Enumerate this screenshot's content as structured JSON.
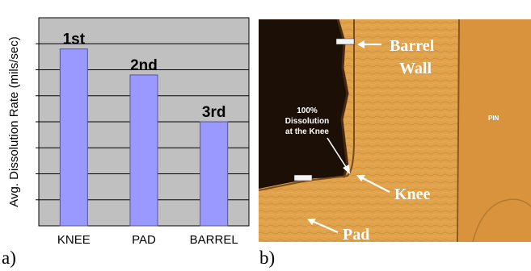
{
  "chart_data": {
    "type": "bar",
    "categories": [
      "KNEE",
      "PAD",
      "BARREL"
    ],
    "values": [
      6.8,
      5.8,
      4.0
    ],
    "data_labels": [
      "1st",
      "2nd",
      "3rd"
    ],
    "ylabel": "Avg. Dissolution Rate (mils/sec)",
    "xlabel": "",
    "ylim": [
      0,
      8
    ],
    "y_tick_step": 1,
    "y_tick_labels_shown": false,
    "grid": true,
    "plot_background": "#c0c0c0",
    "bar_color": "#9999ff",
    "legend": "none"
  },
  "captions": {
    "a": "a)",
    "b": "b)"
  },
  "micrograph": {
    "labels": {
      "barrel_wall_line1": "Barrel",
      "barrel_wall_line2": "Wall",
      "pin": "PIN",
      "knee": "Knee",
      "pad": "Pad",
      "dissolution_line1": "100%",
      "dissolution_line2": "Dissolution",
      "dissolution_line3": "at the Knee"
    },
    "colors": {
      "copper": "#e0a24a",
      "pin": "#d9933c",
      "dark_void": "#1c0f06",
      "label": "#ffffff"
    }
  }
}
